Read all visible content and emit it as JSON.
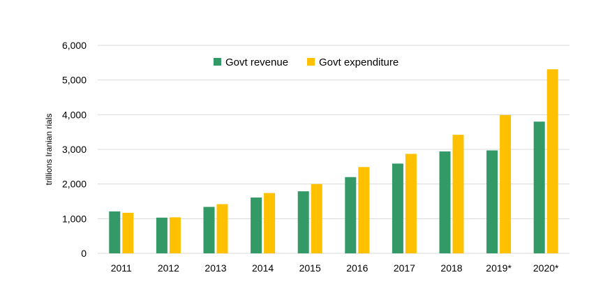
{
  "chart_data": {
    "type": "bar",
    "categories": [
      "2011",
      "2012",
      "2013",
      "2014",
      "2015",
      "2016",
      "2017",
      "2018",
      "2019*",
      "2020*"
    ],
    "series": [
      {
        "name": "Govt revenue",
        "color": "#339966",
        "values": [
          1210,
          1030,
          1340,
          1610,
          1790,
          2200,
          2590,
          2940,
          2970,
          3800
        ]
      },
      {
        "name": "Govt expenditure",
        "color": "#ffc000",
        "values": [
          1170,
          1040,
          1420,
          1740,
          2000,
          2490,
          2870,
          3420,
          3990,
          5310
        ]
      }
    ],
    "ylabel": "trillions Iranian rials",
    "ylim": [
      0,
      6000
    ],
    "yticks": [
      0,
      1000,
      2000,
      3000,
      4000,
      5000,
      6000
    ],
    "ytick_labels": [
      "0",
      "1,000",
      "2,000",
      "3,000",
      "4,000",
      "5,000",
      "6,000"
    ],
    "grid": true,
    "legend": "top-center",
    "gridline_color": "#d9d9d9"
  }
}
